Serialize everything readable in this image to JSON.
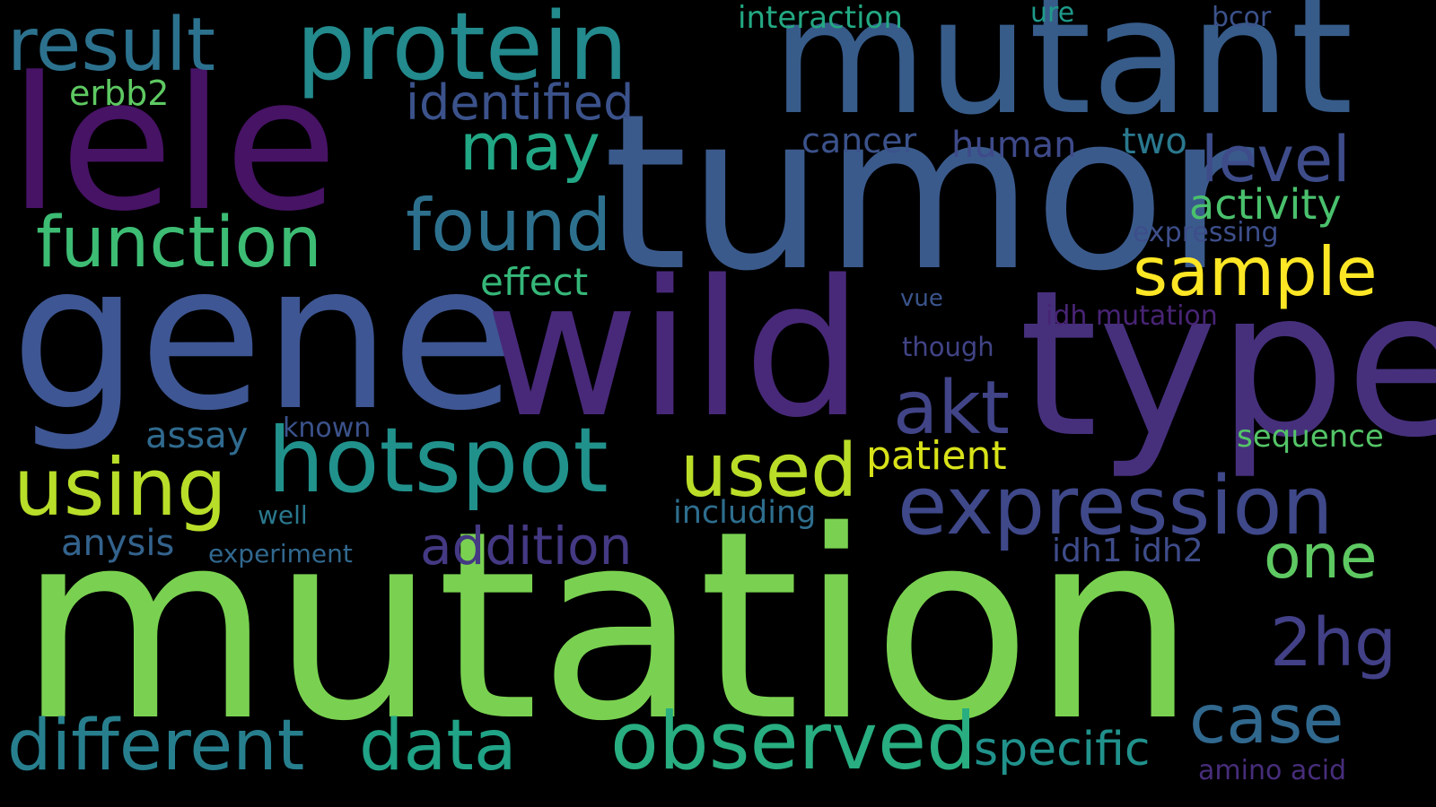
{
  "background_color": "#000000",
  "words": [
    {
      "text": "mutation",
      "color": "#7ad151"
    },
    {
      "text": "tumor",
      "color": "#3b5a8c"
    },
    {
      "text": "gene",
      "color": "#3e5693"
    },
    {
      "text": "wild",
      "color": "#482979"
    },
    {
      "text": "type",
      "color": "#46307c"
    },
    {
      "text": "mutant",
      "color": "#375c8a"
    },
    {
      "text": "lele",
      "color": "#471365"
    },
    {
      "text": "protein",
      "color": "#238a8d"
    },
    {
      "text": "hotspot",
      "color": "#21918c"
    },
    {
      "text": "expression",
      "color": "#3f4889"
    },
    {
      "text": "observed",
      "color": "#28ae80"
    },
    {
      "text": "result",
      "color": "#2c728e"
    },
    {
      "text": "function",
      "color": "#3dbc74"
    },
    {
      "text": "data",
      "color": "#20a386"
    },
    {
      "text": "different",
      "color": "#277f8e"
    },
    {
      "text": "found",
      "color": "#2d708e"
    },
    {
      "text": "using",
      "color": "#b8de29"
    },
    {
      "text": "used",
      "color": "#bade28"
    },
    {
      "text": "sample",
      "color": "#fde725"
    },
    {
      "text": "akt",
      "color": "#414487"
    },
    {
      "text": "may",
      "color": "#22a785"
    },
    {
      "text": "case",
      "color": "#31688e"
    },
    {
      "text": "addition",
      "color": "#443983"
    },
    {
      "text": "2hg",
      "color": "#424086"
    },
    {
      "text": "one",
      "color": "#5ec962"
    },
    {
      "text": "level",
      "color": "#3e4c8a"
    },
    {
      "text": "specific",
      "color": "#21918c"
    },
    {
      "text": "identified",
      "color": "#3b528b"
    },
    {
      "text": "activity",
      "color": "#4ac16d"
    },
    {
      "text": "patient",
      "color": "#d8e219"
    },
    {
      "text": "effect",
      "color": "#35b779"
    },
    {
      "text": "human",
      "color": "#3e4a89"
    },
    {
      "text": "cancer",
      "color": "#3b528b"
    },
    {
      "text": "two",
      "color": "#2a788e"
    },
    {
      "text": "interaction",
      "color": "#23a983"
    },
    {
      "text": "erbb2",
      "color": "#5ec962"
    },
    {
      "text": "assay",
      "color": "#306a8e"
    },
    {
      "text": "anysis",
      "color": "#33638d"
    },
    {
      "text": "sequence",
      "color": "#54c568"
    },
    {
      "text": "including",
      "color": "#2e6e8e"
    },
    {
      "text": "idh1 idh2",
      "color": "#3e4c8a"
    },
    {
      "text": "amino acid",
      "color": "#472d7b"
    },
    {
      "text": "idh mutation",
      "color": "#482475"
    },
    {
      "text": "expressing",
      "color": "#3d4e8a"
    },
    {
      "text": "known",
      "color": "#3b528b"
    },
    {
      "text": "well",
      "color": "#2a788e"
    },
    {
      "text": "experiment",
      "color": "#31688e"
    },
    {
      "text": "though",
      "color": "#414487"
    },
    {
      "text": "vue",
      "color": "#3a548c"
    },
    {
      "text": "ure",
      "color": "#1f9a8a"
    },
    {
      "text": "bcor",
      "color": "#3b528b"
    }
  ]
}
